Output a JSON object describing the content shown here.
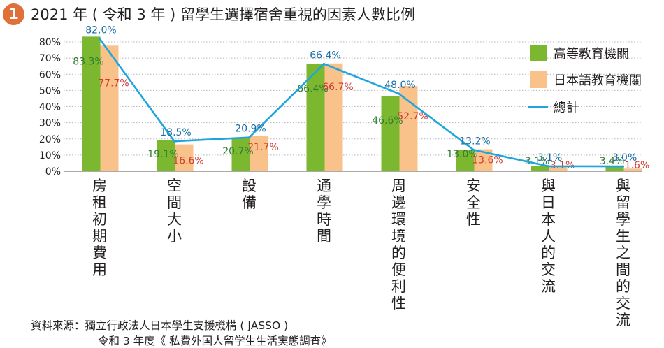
{
  "header": {
    "badge": "1",
    "title": "2021 年 ( 令和 3 年 ) 留學生選擇宿舍重視的因素人數比例"
  },
  "source": {
    "line1": "資料來源：獨立行政法人日本學生支援機構 ( JASSO )",
    "line2": "令和 3 年度《 私費外国人留学生生活実態調査》"
  },
  "colors": {
    "higher_ed": "#7cb82f",
    "language_school": "#f8c28a",
    "total": "#1ea6dc",
    "label_green": "#2e7d32",
    "label_red": "#d13a2f",
    "label_blue": "#1a6fa6",
    "badge": "#e0703a"
  },
  "chart_data": {
    "type": "bar",
    "categories": [
      "房租初期費用",
      "空間大小",
      "設備",
      "通學時間",
      "周邊環境的便利性",
      "安全性",
      "與日本人的交流",
      "與留學生之間的交流"
    ],
    "series": [
      {
        "name": "高等教育機關",
        "kind": "bar",
        "color": "#7cb82f",
        "values": [
          83.3,
          19.1,
          20.7,
          66.4,
          46.6,
          13.0,
          3.1,
          3.4
        ]
      },
      {
        "name": "日本語教育機關",
        "kind": "bar",
        "color": "#f8c28a",
        "values": [
          77.7,
          16.6,
          21.7,
          66.7,
          52.7,
          13.6,
          3.1,
          1.6
        ]
      },
      {
        "name": "總計",
        "kind": "line",
        "color": "#1ea6dc",
        "values": [
          82.0,
          18.5,
          20.9,
          66.4,
          48.0,
          13.2,
          3.1,
          3.0
        ]
      }
    ],
    "ylim": [
      0,
      80
    ],
    "yticks": [
      "0%",
      "10%",
      "20%",
      "30%",
      "40%",
      "50%",
      "60%",
      "70%",
      "80%"
    ],
    "grid": true,
    "legend_position": "right",
    "value_unit": "%"
  }
}
